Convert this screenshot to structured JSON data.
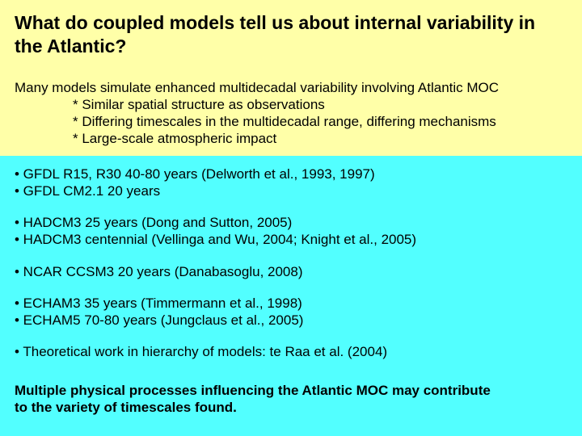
{
  "colors": {
    "top_bg": "#ffffa8",
    "lower_bg": "#52ffff",
    "text": "#000000"
  },
  "typography": {
    "title_fontsize": 23,
    "body_fontsize": 17,
    "font_family": "Arial"
  },
  "title": "What do coupled models tell us about internal variability in the Atlantic?",
  "intro": {
    "main": "Many models simulate enhanced multidecadal variability involving Atlantic MOC",
    "subs": [
      "* Similar spatial structure as observations",
      "* Differing timescales in the multidecadal range, differing mechanisms",
      "* Large-scale atmospheric impact"
    ]
  },
  "groups": [
    {
      "items": [
        "• GFDL R15, R30  40-80 years (Delworth et al., 1993, 1997)",
        "• GFDL CM2.1 20 years"
      ]
    },
    {
      "items": [
        "• HADCM3 25 years  (Dong and Sutton, 2005)",
        "• HADCM3  centennial (Vellinga and Wu, 2004; Knight et al., 2005)"
      ]
    },
    {
      "items": [
        "• NCAR CCSM3 20 years (Danabasoglu, 2008)"
      ]
    },
    {
      "items": [
        "• ECHAM3 35 years (Timmermann et al., 1998)",
        "• ECHAM5 70-80 years (Jungclaus et al., 2005)"
      ]
    },
    {
      "items": [
        "• Theoretical work in hierarchy of models: te Raa et al. (2004)"
      ]
    }
  ],
  "conclusion": {
    "line1": "Multiple physical processes influencing the Atlantic MOC may contribute",
    "line2": " to the variety of timescales found."
  }
}
